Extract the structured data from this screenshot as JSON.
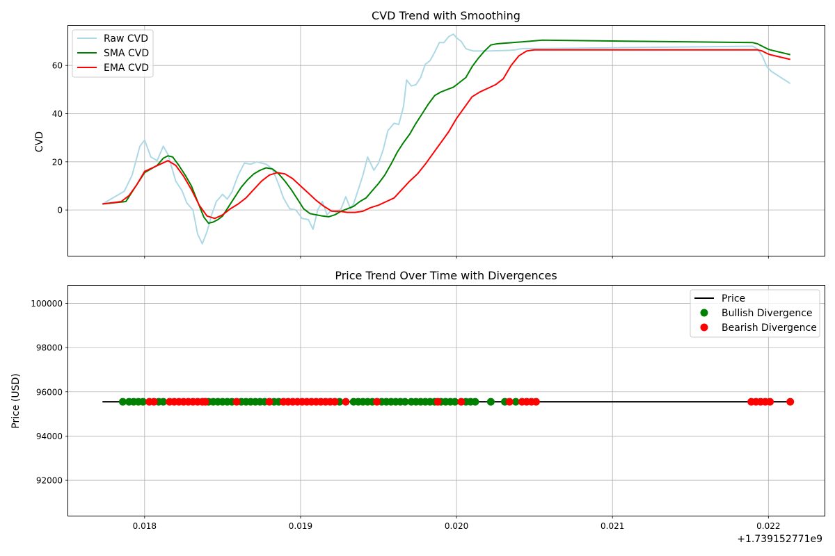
{
  "chart_data": [
    {
      "type": "line",
      "title": "CVD Trend with Smoothing",
      "xlabel": "",
      "ylabel": "CVD",
      "x_offset_label": "+1.739152771e9",
      "xlim": [
        0.01751,
        0.02236
      ],
      "ylim": [
        -19,
        76.5
      ],
      "xticks": [
        0.018,
        0.019,
        0.02,
        0.021,
        0.022
      ],
      "yticks": [
        0,
        20,
        40,
        60
      ],
      "grid": true,
      "legend": "top-left",
      "series": [
        {
          "name": "Raw CVD",
          "color": "#add8e6",
          "x": [
            0.01773,
            0.01787,
            0.01792,
            0.01797,
            0.018,
            0.01804,
            0.01808,
            0.01812,
            0.01815,
            0.0182,
            0.01824,
            0.01827,
            0.01831,
            0.01834,
            0.01837,
            0.0184,
            0.01843,
            0.01846,
            0.0185,
            0.01853,
            0.01856,
            0.0186,
            0.01864,
            0.01868,
            0.01872,
            0.01875,
            0.01878,
            0.01882,
            0.01886,
            0.01889,
            0.01893,
            0.01897,
            0.01901,
            0.01905,
            0.01908,
            0.01911,
            0.01914,
            0.01917,
            0.0192,
            0.01923,
            0.01926,
            0.01929,
            0.01932,
            0.01934,
            0.01937,
            0.0194,
            0.01943,
            0.01947,
            0.0195,
            0.01953,
            0.01956,
            0.0196,
            0.01963,
            0.01966,
            0.01968,
            0.01971,
            0.01974,
            0.01977,
            0.0198,
            0.01983,
            0.01986,
            0.01989,
            0.01992,
            0.01995,
            0.01998,
            0.02,
            0.02003,
            0.02006,
            0.02008,
            0.02011,
            0.0202,
            0.0203,
            0.02034,
            0.02038,
            0.0204,
            0.02043,
            0.02046,
            0.0205,
            0.02052,
            0.02055,
            0.0219,
            0.02193,
            0.02196,
            0.02199,
            0.02202,
            0.02214
          ],
          "y": [
            2.5,
            7.8,
            14.5,
            26.5,
            29.0,
            22.0,
            20.5,
            26.5,
            23.0,
            12.0,
            8.0,
            3.0,
            0.0,
            -10.0,
            -14.0,
            -9.0,
            -2.0,
            3.5,
            6.5,
            4.5,
            7.5,
            14.5,
            19.5,
            19.0,
            20.0,
            19.5,
            19.0,
            17.0,
            10.5,
            5.0,
            0.5,
            0.0,
            -3.5,
            -4.0,
            -8.0,
            0.0,
            3.5,
            -2.0,
            0.0,
            -1.0,
            0.5,
            5.5,
            0.5,
            2.5,
            8.5,
            14.5,
            22.0,
            16.5,
            19.5,
            25.0,
            33.0,
            36.0,
            35.5,
            43.0,
            54.0,
            51.5,
            52.0,
            55.0,
            60.5,
            62.0,
            65.5,
            69.5,
            69.5,
            72.0,
            73.0,
            71.5,
            70.0,
            67.0,
            66.5,
            66.0,
            66.0,
            66.2,
            66.3,
            66.5,
            66.8,
            67.0,
            67.0,
            67.0,
            67.0,
            67.0,
            68.0,
            66.8,
            64.0,
            59.5,
            57.5,
            52.5
          ]
        },
        {
          "name": "SMA CVD",
          "color": "#008000",
          "x": [
            0.01773,
            0.01788,
            0.018,
            0.01808,
            0.01812,
            0.01815,
            0.01818,
            0.01822,
            0.01826,
            0.0183,
            0.01834,
            0.01838,
            0.01841,
            0.01844,
            0.01847,
            0.0185,
            0.01854,
            0.01858,
            0.01862,
            0.01866,
            0.0187,
            0.01874,
            0.01878,
            0.01882,
            0.01886,
            0.0189,
            0.01894,
            0.01898,
            0.01902,
            0.01906,
            0.0191,
            0.01914,
            0.01918,
            0.01922,
            0.01926,
            0.0193,
            0.01934,
            0.01938,
            0.01942,
            0.01946,
            0.0195,
            0.01954,
            0.01958,
            0.01962,
            0.01966,
            0.0197,
            0.01974,
            0.01978,
            0.01982,
            0.01986,
            0.0199,
            0.01994,
            0.01998,
            0.02002,
            0.02006,
            0.0201,
            0.02014,
            0.02018,
            0.02022,
            0.02026,
            0.0203,
            0.02034,
            0.02038,
            0.02042,
            0.02046,
            0.0205,
            0.02055,
            0.0219,
            0.02193,
            0.02196,
            0.02199,
            0.02201,
            0.02214
          ],
          "y": [
            2.5,
            3.5,
            15.5,
            18.5,
            21.5,
            22.5,
            22.0,
            18.5,
            14.5,
            10.0,
            3.5,
            -3.0,
            -5.5,
            -5.0,
            -4.0,
            -2.5,
            1.5,
            5.5,
            9.5,
            12.5,
            15.0,
            16.5,
            17.5,
            17.0,
            15.0,
            12.0,
            8.5,
            4.5,
            0.5,
            -1.5,
            -2.0,
            -2.5,
            -2.8,
            -2.0,
            -0.5,
            0.5,
            1.5,
            3.5,
            5.0,
            8.0,
            11.0,
            14.5,
            19.0,
            24.0,
            28.0,
            31.5,
            36.0,
            40.0,
            44.0,
            47.5,
            49.0,
            50.0,
            51.0,
            53.0,
            55.0,
            59.5,
            63.0,
            66.0,
            68.5,
            69.0,
            69.2,
            69.4,
            69.6,
            69.8,
            70.0,
            70.2,
            70.5,
            69.5,
            69.0,
            68.0,
            67.0,
            66.5,
            64.5
          ]
        },
        {
          "name": "EMA CVD",
          "color": "#ff0000",
          "x": [
            0.01773,
            0.01785,
            0.0179,
            0.01795,
            0.018,
            0.01805,
            0.0181,
            0.01815,
            0.0182,
            0.01825,
            0.0183,
            0.01835,
            0.0184,
            0.01845,
            0.0185,
            0.01855,
            0.0186,
            0.01865,
            0.0187,
            0.01875,
            0.0188,
            0.01885,
            0.0189,
            0.01895,
            0.019,
            0.01905,
            0.0191,
            0.01915,
            0.0192,
            0.01925,
            0.0193,
            0.01935,
            0.0194,
            0.01945,
            0.0195,
            0.01955,
            0.0196,
            0.01965,
            0.0197,
            0.01975,
            0.0198,
            0.01985,
            0.0199,
            0.01995,
            0.02,
            0.02005,
            0.0201,
            0.02015,
            0.0202,
            0.02025,
            0.0203,
            0.02035,
            0.0204,
            0.02045,
            0.0205,
            0.02055,
            0.0219,
            0.02193,
            0.02196,
            0.02199,
            0.02201,
            0.02214
          ],
          "y": [
            2.5,
            3.5,
            6.0,
            10.5,
            16.0,
            17.5,
            19.0,
            20.5,
            18.5,
            14.0,
            8.5,
            2.0,
            -2.5,
            -3.5,
            -2.0,
            0.5,
            2.5,
            5.0,
            8.5,
            12.0,
            14.5,
            15.5,
            15.0,
            13.0,
            10.0,
            7.0,
            4.0,
            1.5,
            -0.5,
            -0.5,
            -1.0,
            -1.0,
            -0.5,
            1.0,
            2.0,
            3.5,
            5.0,
            8.5,
            12.0,
            15.0,
            19.0,
            23.5,
            28.0,
            32.5,
            38.0,
            42.5,
            47.0,
            49.0,
            50.5,
            52.0,
            54.5,
            60.0,
            64.0,
            66.0,
            66.5,
            66.5,
            66.5,
            66.5,
            66.0,
            65.0,
            64.5,
            62.5
          ]
        }
      ]
    },
    {
      "type": "scatter",
      "title": "Price Trend Over Time with Divergences",
      "xlabel": "",
      "ylabel": "Price (USD)",
      "xlim": [
        0.01751,
        0.02236
      ],
      "ylim": [
        90400,
        100800
      ],
      "xticks": [
        0.018,
        0.019,
        0.02,
        0.021,
        0.022
      ],
      "xticklabels": [
        "0.018",
        "0.019",
        "0.020",
        "0.021",
        "0.022"
      ],
      "yticks": [
        92000,
        94000,
        96000,
        98000,
        100000
      ],
      "grid": true,
      "legend": "top-right",
      "series": [
        {
          "name": "Price",
          "kind": "line",
          "color": "#000000",
          "x": [
            0.01773,
            0.02214
          ],
          "y": [
            95550,
            95550
          ]
        },
        {
          "name": "Bullish Divergence",
          "kind": "markers",
          "color": "#008000",
          "price": 95550,
          "x": [
            0.01786,
            0.0179,
            0.01793,
            0.01796,
            0.01799,
            0.01809,
            0.01812,
            0.01841,
            0.01844,
            0.01847,
            0.0185,
            0.01853,
            0.01856,
            0.01862,
            0.01865,
            0.01868,
            0.01871,
            0.01874,
            0.01877,
            0.01883,
            0.01886,
            0.01925,
            0.01934,
            0.01937,
            0.0194,
            0.01943,
            0.01946,
            0.01952,
            0.01955,
            0.01958,
            0.01961,
            0.01964,
            0.01967,
            0.01971,
            0.01974,
            0.01977,
            0.0198,
            0.01983,
            0.01986,
            0.0199,
            0.01993,
            0.01996,
            0.01999,
            0.02006,
            0.02009,
            0.02012,
            0.02022,
            0.02031,
            0.02038
          ]
        },
        {
          "name": "Bearish Divergence",
          "kind": "markers",
          "color": "#ff0000",
          "price": 95550,
          "x": [
            0.01803,
            0.01806,
            0.01816,
            0.01819,
            0.01822,
            0.01825,
            0.01828,
            0.01831,
            0.01834,
            0.01837,
            0.01839,
            0.01859,
            0.0188,
            0.01889,
            0.01892,
            0.01895,
            0.01898,
            0.01901,
            0.01904,
            0.01907,
            0.0191,
            0.01913,
            0.01916,
            0.01919,
            0.01922,
            0.01929,
            0.01949,
            0.01988,
            0.02003,
            0.02034,
            0.02042,
            0.02045,
            0.02048,
            0.02051,
            0.02189,
            0.02192,
            0.02195,
            0.02198,
            0.02201,
            0.02214
          ]
        }
      ]
    }
  ]
}
